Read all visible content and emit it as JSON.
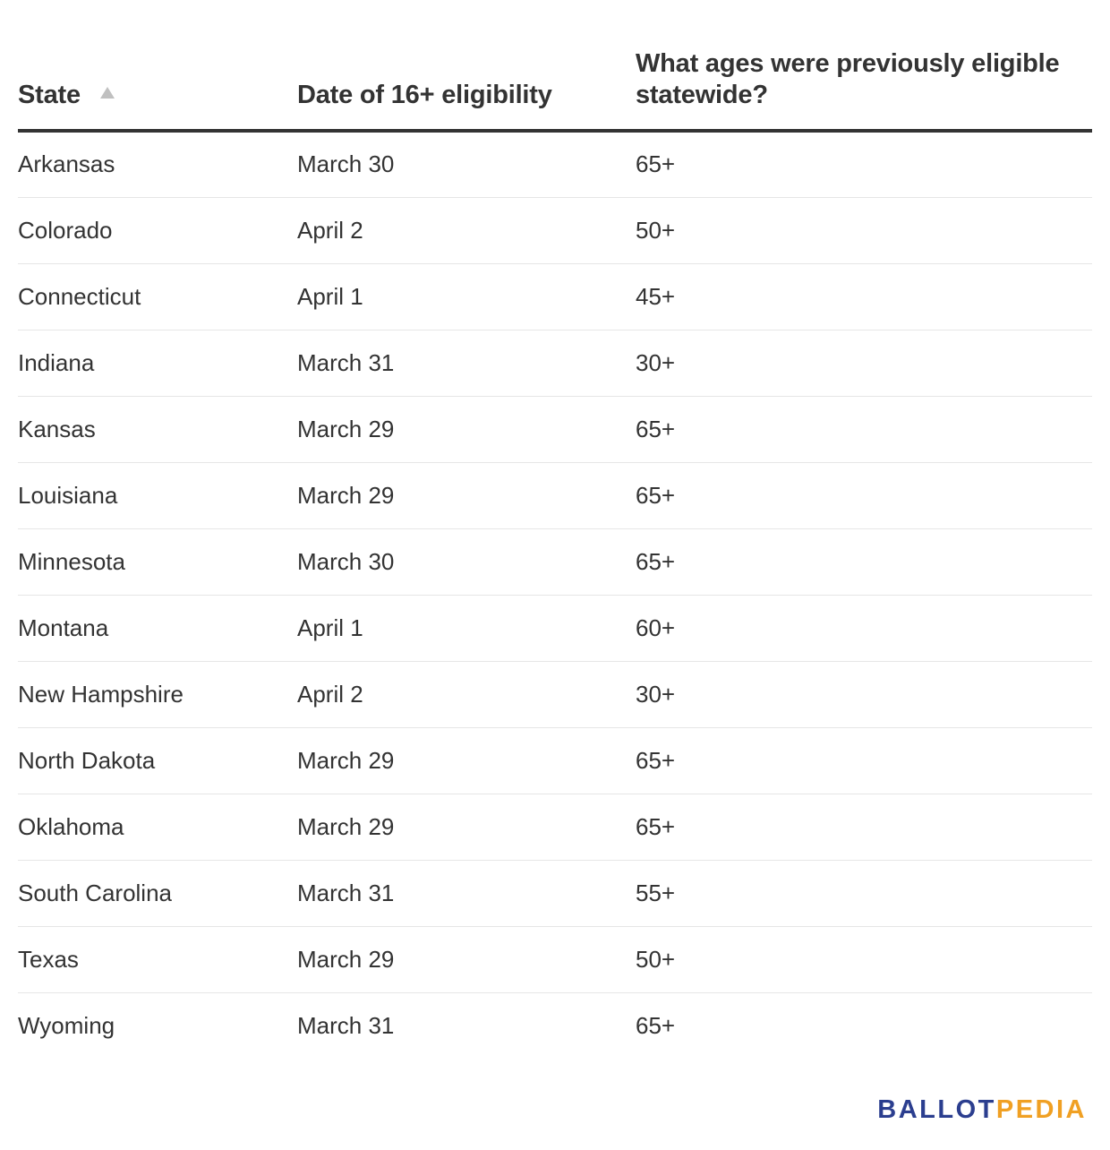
{
  "table": {
    "headers": {
      "state": "State",
      "date": "Date of 16+ eligibility",
      "ages": "What ages were previously eligible statewide?"
    },
    "sorted_column": "state",
    "sort_direction": "ascending",
    "rows": [
      {
        "state": "Arkansas",
        "date": "March 30",
        "ages": "65+"
      },
      {
        "state": "Colorado",
        "date": "April 2",
        "ages": "50+"
      },
      {
        "state": "Connecticut",
        "date": "April 1",
        "ages": "45+"
      },
      {
        "state": "Indiana",
        "date": "March 31",
        "ages": "30+"
      },
      {
        "state": "Kansas",
        "date": "March 29",
        "ages": "65+"
      },
      {
        "state": "Louisiana",
        "date": "March 29",
        "ages": "65+"
      },
      {
        "state": "Minnesota",
        "date": "March 30",
        "ages": "65+"
      },
      {
        "state": "Montana",
        "date": "April 1",
        "ages": "60+"
      },
      {
        "state": "New Hampshire",
        "date": "April 2",
        "ages": "30+"
      },
      {
        "state": "North Dakota",
        "date": "March 29",
        "ages": "65+"
      },
      {
        "state": "Oklahoma",
        "date": "March 29",
        "ages": "65+"
      },
      {
        "state": "South Carolina",
        "date": "March 31",
        "ages": "55+"
      },
      {
        "state": "Texas",
        "date": "March 29",
        "ages": "50+"
      },
      {
        "state": "Wyoming",
        "date": "March 31",
        "ages": "65+"
      }
    ]
  },
  "logo": {
    "part1": "BALLOT",
    "part2": "PEDIA",
    "color1": "#2b3e8f",
    "color2": "#f0a023"
  }
}
